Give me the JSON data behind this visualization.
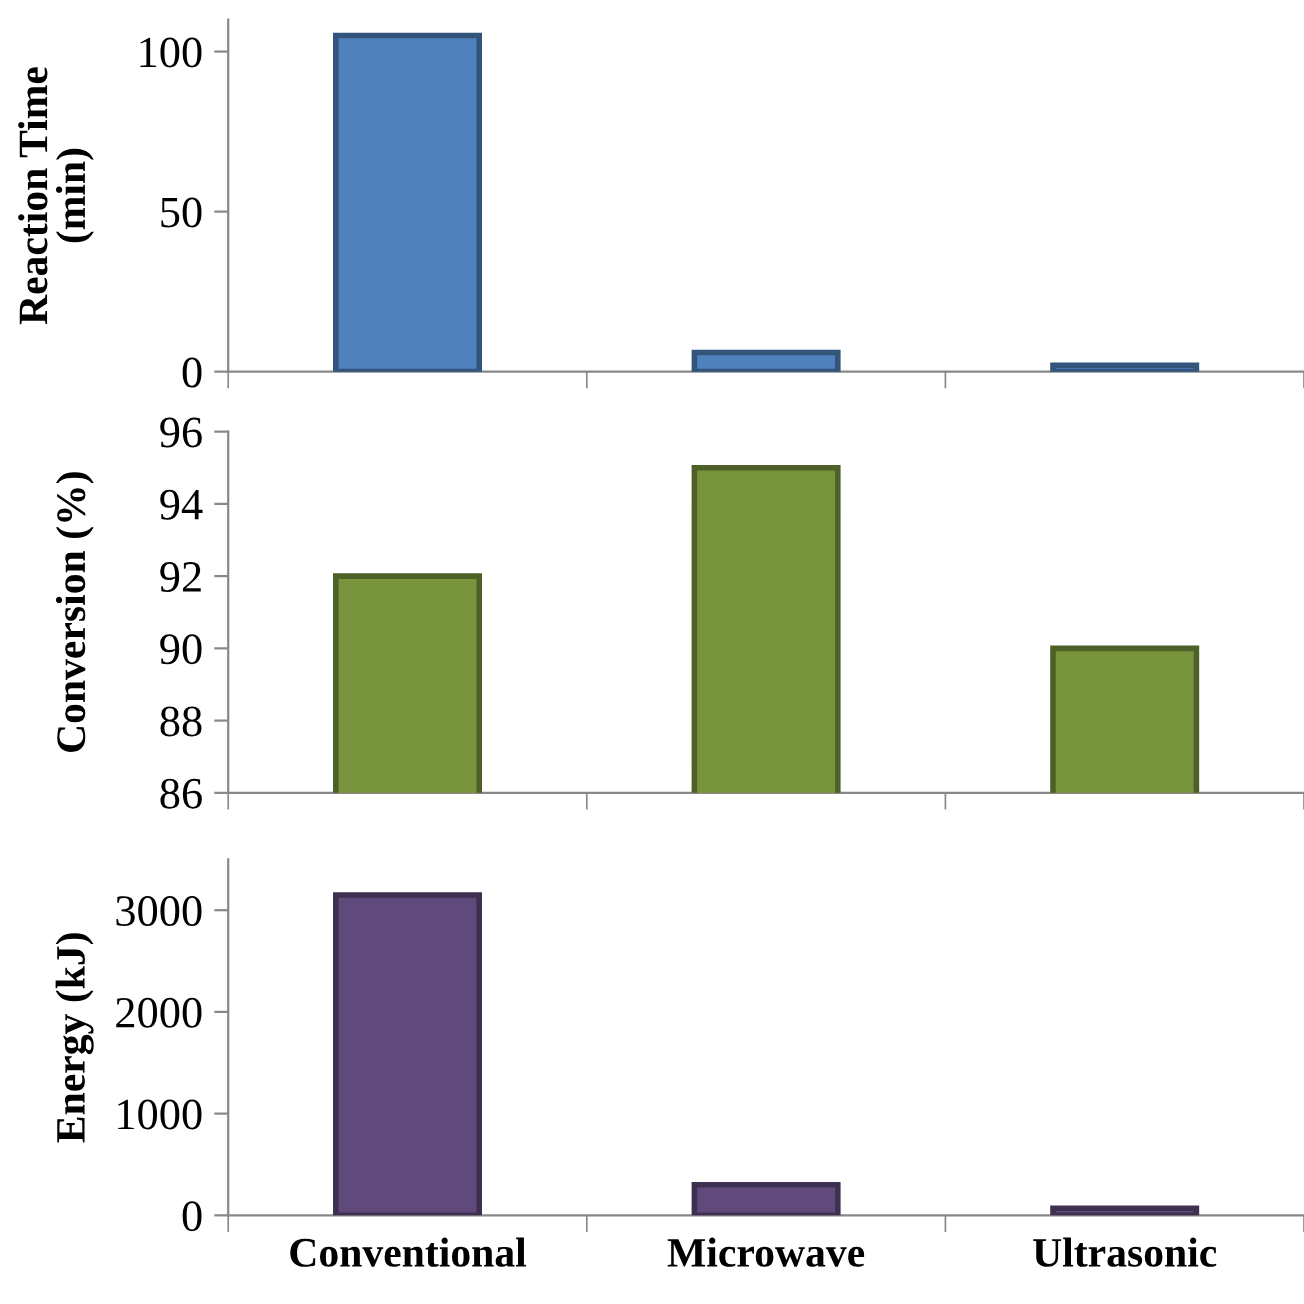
{
  "chart_data": [
    {
      "type": "bar",
      "ylabel": "Reaction Time\n(min)",
      "categories": [
        null,
        null,
        null
      ],
      "values": [
        105,
        6,
        2
      ],
      "color": "#4f81bd",
      "ylim": [
        0,
        110
      ],
      "yticks": [
        0,
        50,
        100
      ],
      "tick_labels": "y",
      "grid": false,
      "legend": false
    },
    {
      "type": "bar",
      "ylabel": "Conversion (%)",
      "categories": [
        null,
        null,
        null
      ],
      "values": [
        92,
        95,
        90
      ],
      "color": "#77933c",
      "ylim": [
        86,
        96
      ],
      "yticks": [
        86,
        88,
        90,
        92,
        94,
        96
      ],
      "tick_labels": "y",
      "grid": false,
      "legend": false
    },
    {
      "type": "bar",
      "ylabel": "Energy (kJ)",
      "categories": [
        "Conventional",
        "Microwave",
        "Ultrasonic"
      ],
      "values": [
        3150,
        300,
        70
      ],
      "color": "#604a7b",
      "ylim": [
        0,
        3500
      ],
      "yticks": [
        0,
        1000,
        2000,
        3000
      ],
      "grid": false,
      "legend": false
    }
  ]
}
